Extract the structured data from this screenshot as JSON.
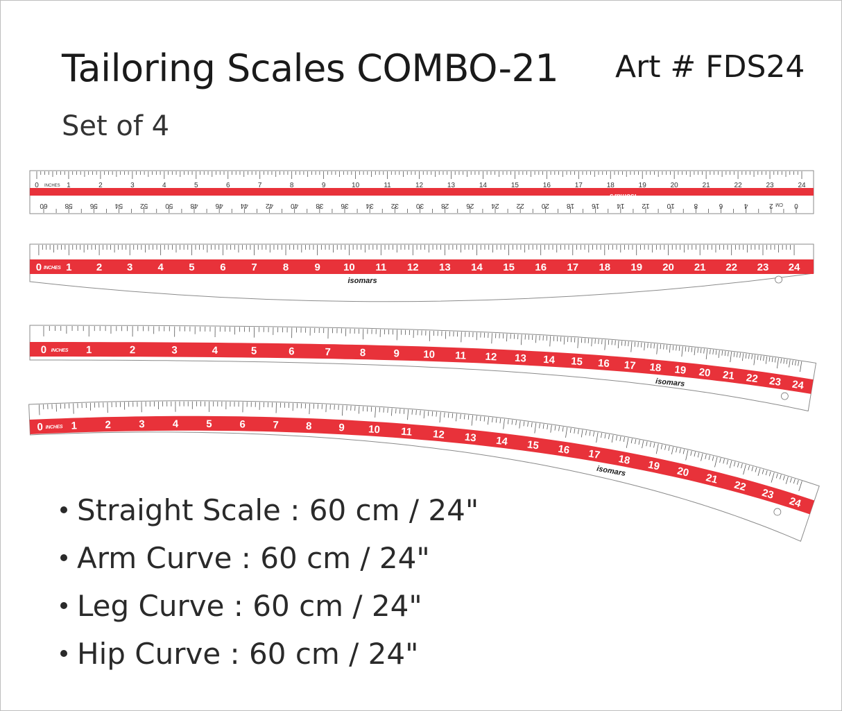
{
  "header": {
    "title": "Tailoring Scales COMBO-21",
    "art_number": "Art # FDS24",
    "subtitle": "Set of 4"
  },
  "colors": {
    "band": "#e8323a",
    "outline": "#8a8a8a",
    "text": "#1a1a1a"
  },
  "rulers": {
    "brand": "isomars",
    "inch_unit": "INCHES",
    "cm_unit": "CM",
    "inch_labels": [
      "0",
      "1",
      "2",
      "3",
      "4",
      "5",
      "6",
      "7",
      "8",
      "9",
      "10",
      "11",
      "12",
      "13",
      "14",
      "15",
      "16",
      "17",
      "18",
      "19",
      "20",
      "21",
      "22",
      "23",
      "24"
    ],
    "cm_labels": [
      "0",
      "2",
      "4",
      "6",
      "8",
      "10",
      "12",
      "14",
      "16",
      "18",
      "20",
      "22",
      "24",
      "26",
      "28",
      "30",
      "32",
      "34",
      "36",
      "38",
      "40",
      "42",
      "44",
      "46",
      "48",
      "50",
      "52",
      "54",
      "56",
      "58",
      "60"
    ]
  },
  "bullets": [
    {
      "text": "Straight Scale : 60 cm / 24\""
    },
    {
      "text": "Arm Curve : 60 cm / 24\""
    },
    {
      "text": "Leg Curve : 60 cm / 24\""
    },
    {
      "text": "Hip Curve : 60 cm / 24\""
    }
  ]
}
